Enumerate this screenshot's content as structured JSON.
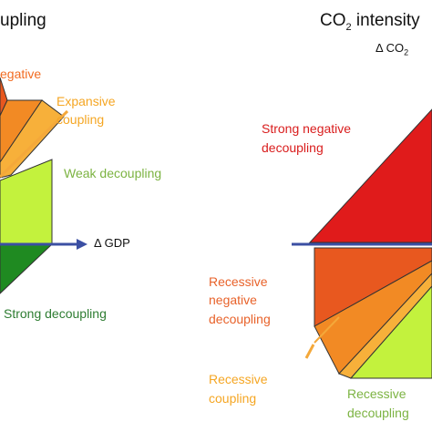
{
  "left_panel": {
    "title": "upling",
    "axis_label": "Δ GDP",
    "regions": [
      {
        "id": "strong-negative",
        "lines": [
          "egative"
        ],
        "color": "#f26c22"
      },
      {
        "id": "expansive-coupling",
        "lines": [
          "Expansive",
          "coupling"
        ],
        "color": "#f5a623"
      },
      {
        "id": "weak-decoupling",
        "lines": [
          "Weak decoupling"
        ],
        "color": "#7cb342"
      },
      {
        "id": "strong-decoupling",
        "lines": [
          "Strong decoupling"
        ],
        "color": "#2e7d32"
      }
    ]
  },
  "right_panel": {
    "title_prefix": "CO",
    "title_sub": "2",
    "title_suffix": " intensity",
    "axis_label_prefix": "Δ CO",
    "axis_label_sub": "2",
    "regions": [
      {
        "id": "strong-negative-decoupling",
        "lines": [
          "Strong negative",
          "decoupling"
        ],
        "color": "#d91d1d"
      },
      {
        "id": "recessive-negative-decoupling",
        "lines": [
          "Recessive",
          "negative",
          "decoupling"
        ],
        "color": "#e8622a"
      },
      {
        "id": "recessive-coupling",
        "lines": [
          "Recessive",
          "coupling"
        ],
        "color": "#f5a623"
      },
      {
        "id": "recessive-decoupling",
        "lines": [
          "Recessive",
          "decoupling"
        ],
        "color": "#7cb342"
      }
    ]
  },
  "colors": {
    "red": "#e01b1b",
    "dark_orange": "#e8581f",
    "orange": "#f28a24",
    "light_orange": "#f7b03a",
    "lime": "#c3f23d",
    "dark_green": "#1f8a21",
    "axis_blue": "#3b4fa3"
  }
}
